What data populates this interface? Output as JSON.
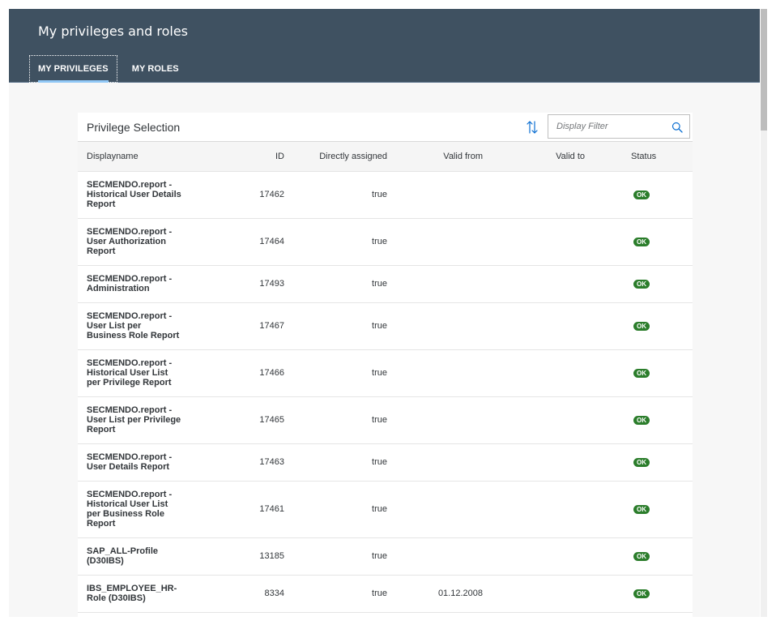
{
  "header": {
    "title": "My privileges and roles"
  },
  "tabs": [
    {
      "label": "MY PRIVILEGES",
      "active": true
    },
    {
      "label": "MY ROLES",
      "active": false
    }
  ],
  "toolbar": {
    "title": "Privilege Selection",
    "sort_icon": "sort-icon",
    "filter": {
      "placeholder": "Display Filter",
      "value": ""
    },
    "search_icon": "search-icon"
  },
  "table": {
    "columns": [
      "Displayname",
      "ID",
      "Directly assigned",
      "Valid from",
      "Valid to",
      "Status"
    ],
    "rows": [
      {
        "name": "SECMENDO.report - Historical User Details Report",
        "id": "17462",
        "direct": "true",
        "from": "",
        "to": "",
        "status": "OK"
      },
      {
        "name": "SECMENDO.report - User Authorization Report",
        "id": "17464",
        "direct": "true",
        "from": "",
        "to": "",
        "status": "OK"
      },
      {
        "name": "SECMENDO.report - Administration",
        "id": "17493",
        "direct": "true",
        "from": "",
        "to": "",
        "status": "OK"
      },
      {
        "name": "SECMENDO.report - User List per Business Role Report",
        "id": "17467",
        "direct": "true",
        "from": "",
        "to": "",
        "status": "OK"
      },
      {
        "name": "SECMENDO.report - Historical User List per Privilege Report",
        "id": "17466",
        "direct": "true",
        "from": "",
        "to": "",
        "status": "OK"
      },
      {
        "name": "SECMENDO.report - User List per Privilege Report",
        "id": "17465",
        "direct": "true",
        "from": "",
        "to": "",
        "status": "OK"
      },
      {
        "name": "SECMENDO.report - User Details Report",
        "id": "17463",
        "direct": "true",
        "from": "",
        "to": "",
        "status": "OK"
      },
      {
        "name": "SECMENDO.report - Historical User List per Business Role Report",
        "id": "17461",
        "direct": "true",
        "from": "",
        "to": "",
        "status": "OK"
      },
      {
        "name": "SAP_ALL-Profile (D30IBS)",
        "id": "13185",
        "direct": "true",
        "from": "",
        "to": "",
        "status": "OK"
      },
      {
        "name": "IBS_EMPLOYEE_HR-Role (D30IBS)",
        "id": "8334",
        "direct": "true",
        "from": "01.12.2008",
        "to": "",
        "status": "OK"
      }
    ]
  },
  "colors": {
    "header_bg": "#3f5161",
    "tab_indicator": "#91c8f6",
    "status_ok": "#2b7d2b"
  }
}
